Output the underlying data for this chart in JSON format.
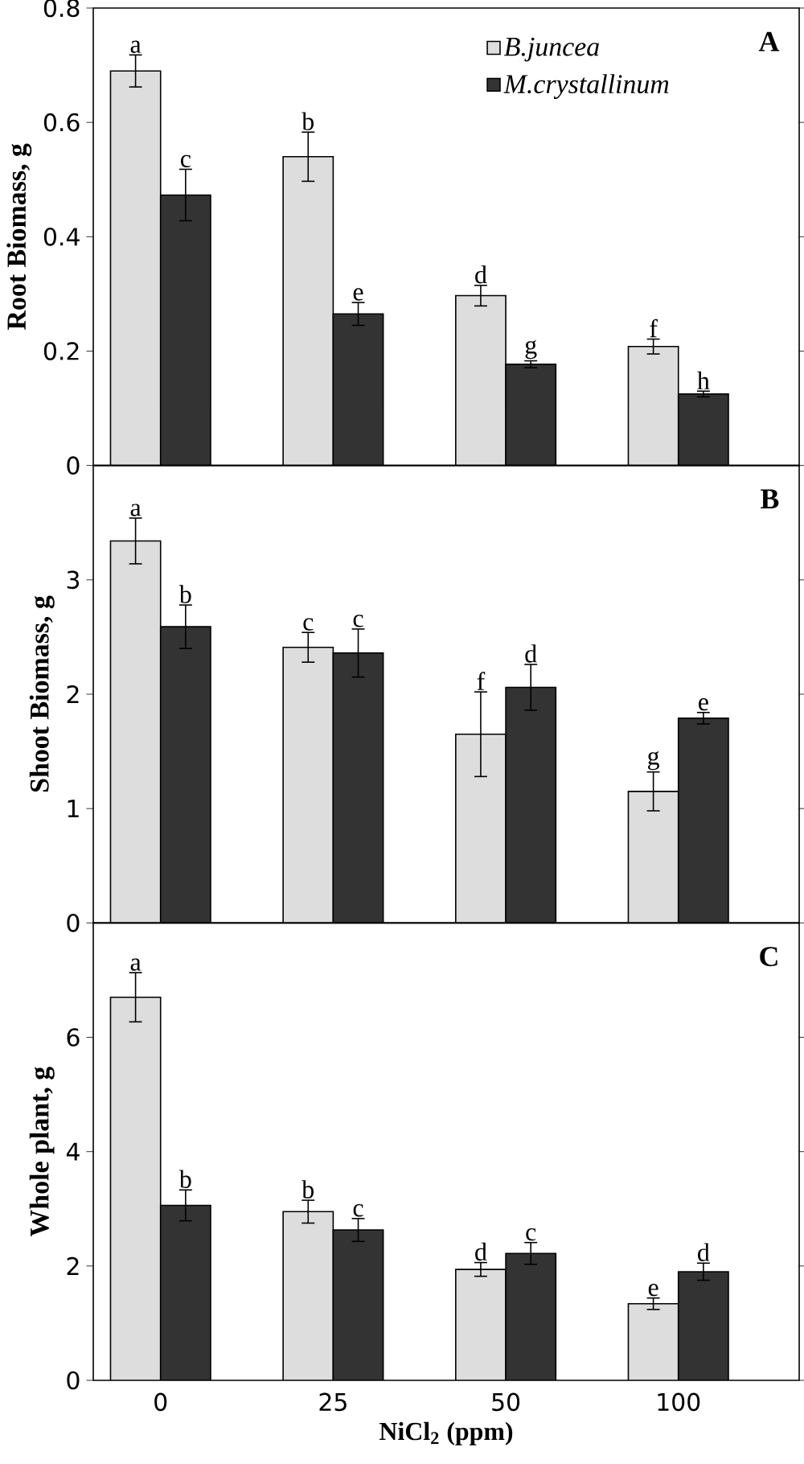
{
  "chart_data": [
    {
      "type": "bar",
      "ylabel": "Root Biomass, g",
      "categories": [
        null,
        null,
        null,
        null
      ],
      "ylim": [
        0,
        0.8
      ],
      "yticks": [
        0,
        0.2,
        0.4,
        0.6,
        0.8
      ],
      "tick_labels": "y",
      "legend": "top right",
      "annotations": [
        "A"
      ],
      "series": [
        {
          "name": "B.juncea",
          "color": "#dddddd",
          "values": [
            0.69,
            0.54,
            0.297,
            0.208
          ],
          "errors": [
            0.028,
            0.043,
            0.018,
            0.013
          ],
          "value_labels": [
            "a",
            "b",
            "d",
            "f"
          ]
        },
        {
          "name": "M.crystallinum",
          "color": "#333333",
          "values": [
            0.473,
            0.265,
            0.177,
            0.125
          ],
          "errors": [
            0.045,
            0.02,
            0.006,
            0.005
          ],
          "value_labels": [
            "c",
            "e",
            "g",
            "h"
          ]
        }
      ]
    },
    {
      "type": "bar",
      "ylabel": "Shoot Biomass, g",
      "categories": [
        null,
        null,
        null,
        null
      ],
      "ylim": [
        0,
        4
      ],
      "yticks": [
        0,
        1,
        2,
        3
      ],
      "tick_labels": "y",
      "annotations": [
        "B"
      ],
      "series": [
        {
          "color": "#dddddd",
          "values": [
            3.34,
            2.41,
            1.65,
            1.15
          ],
          "errors": [
            0.2,
            0.13,
            0.37,
            0.17
          ],
          "value_labels": [
            "a",
            "c",
            "f",
            "g"
          ]
        },
        {
          "color": "#333333",
          "values": [
            2.59,
            2.36,
            2.06,
            1.79
          ],
          "errors": [
            0.19,
            0.21,
            0.2,
            0.05
          ],
          "value_labels": [
            "b",
            "c",
            "d",
            "e"
          ]
        }
      ]
    },
    {
      "type": "bar",
      "ylabel": "Whole plant, g",
      "xlabel": "NiCl$_{2}$ (ppm)",
      "categories": [
        "0",
        "25",
        "50",
        "100"
      ],
      "ylim": [
        0,
        8
      ],
      "yticks": [
        0,
        2,
        4,
        6
      ],
      "annotations": [
        "C"
      ],
      "series": [
        {
          "color": "#dddddd",
          "values": [
            6.7,
            2.95,
            1.94,
            1.34
          ],
          "errors": [
            0.43,
            0.2,
            0.12,
            0.1
          ],
          "value_labels": [
            "a",
            "b",
            "d",
            "e"
          ]
        },
        {
          "color": "#333333",
          "values": [
            3.06,
            2.63,
            2.22,
            1.9
          ],
          "errors": [
            0.27,
            0.2,
            0.19,
            0.15
          ],
          "value_labels": [
            "b",
            "c",
            "c",
            "d"
          ]
        }
      ]
    }
  ]
}
